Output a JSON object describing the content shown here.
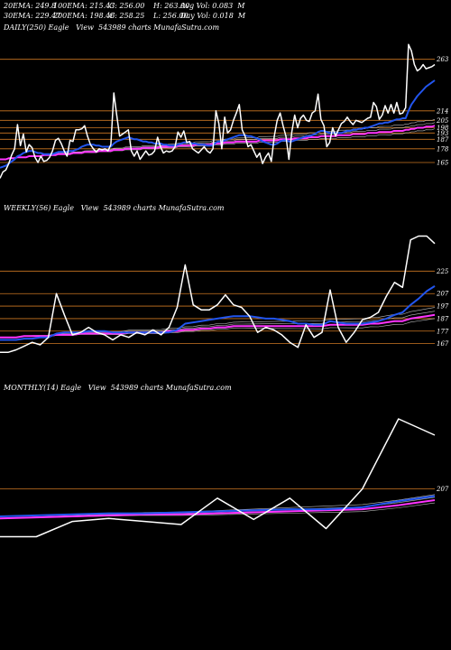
{
  "header": {
    "row1": [
      "20EMA: 249.8",
      "100EMA: 215.43",
      "C: 256.00",
      "H: 263.00",
      "Avg Vol: 0.083  M"
    ],
    "row2": [
      "30EMA: 229.47",
      "200EMA: 198.46",
      "C: 258.25",
      "L: 256.00",
      "Day Vol: 0.018  M"
    ]
  },
  "colors": {
    "price": "#ffffff",
    "ema_fast": "#2255ee",
    "ema_slow": "#ff33ff",
    "level": "#cc7722",
    "ema_thin": "#bbbbbb"
  },
  "chart_data": [
    {
      "type": "line",
      "title": "DAILY(250) Eagle   View  543989 charts MunafaSutra.com",
      "ylim": [
        135,
        285
      ],
      "levels": [
        263,
        214,
        205,
        198,
        193,
        187,
        178,
        165
      ],
      "series": [
        {
          "name": "price",
          "values": [
            150,
            156,
            158,
            164,
            172,
            178,
            201,
            181,
            192,
            175,
            182,
            179,
            170,
            165,
            171,
            166,
            167,
            170,
            176,
            186,
            188,
            183,
            176,
            171,
            186,
            185,
            196,
            196,
            197,
            200,
            190,
            182,
            178,
            175,
            178,
            177,
            178,
            176,
            182,
            231,
            210,
            190,
            192,
            194,
            196,
            176,
            171,
            176,
            168,
            172,
            176,
            172,
            173,
            176,
            189,
            180,
            174,
            176,
            175,
            176,
            180,
            194,
            189,
            195,
            184,
            185,
            178,
            176,
            174,
            177,
            180,
            176,
            174,
            178,
            214,
            202,
            178,
            208,
            193,
            196,
            205,
            212,
            220,
            196,
            190,
            180,
            182,
            176,
            170,
            174,
            164,
            170,
            174,
            166,
            190,
            205,
            212,
            200,
            190,
            168,
            194,
            210,
            198,
            207,
            210,
            205,
            204,
            212,
            214,
            230,
            206,
            200,
            180,
            184,
            198,
            190,
            196,
            202,
            204,
            208,
            204,
            201,
            205,
            204,
            203,
            205,
            207,
            208,
            222,
            218,
            206,
            210,
            219,
            212,
            220,
            212,
            222,
            211,
            212,
            217,
            277,
            271,
            258,
            252,
            254,
            258,
            254,
            255,
            256,
            258
          ]
        },
        {
          "name": "ema_fast",
          "values": [
            160,
            161,
            162,
            164,
            166,
            168,
            171,
            172,
            174,
            175,
            176,
            176,
            175,
            174,
            174,
            173,
            173,
            173,
            173,
            174,
            175,
            175,
            175,
            175,
            176,
            176,
            177,
            178,
            180,
            181,
            182,
            182,
            182,
            181,
            181,
            180,
            180,
            180,
            180,
            183,
            185,
            186,
            187,
            188,
            189,
            188,
            187,
            187,
            186,
            185,
            185,
            184,
            184,
            183,
            183,
            183,
            182,
            182,
            181,
            181,
            181,
            182,
            183,
            184,
            184,
            184,
            183,
            183,
            182,
            182,
            182,
            181,
            181,
            181,
            184,
            185,
            185,
            186,
            187,
            188,
            189,
            190,
            191,
            191,
            191,
            190,
            190,
            189,
            188,
            187,
            185,
            184,
            183,
            182,
            182,
            183,
            185,
            186,
            186,
            185,
            185,
            186,
            187,
            188,
            189,
            190,
            190,
            191,
            192,
            194,
            195,
            195,
            194,
            193,
            193,
            193,
            193,
            193,
            194,
            195,
            195,
            196,
            196,
            197,
            197,
            198,
            198,
            199,
            200,
            201,
            202,
            202,
            203,
            203,
            204,
            205,
            206,
            206,
            207,
            207,
            214,
            220,
            224,
            228,
            231,
            234,
            237,
            239,
            241,
            243
          ]
        },
        {
          "name": "ema_slow",
          "values": [
            168,
            168,
            168,
            169,
            169,
            169,
            170,
            170,
            170,
            170,
            171,
            171,
            171,
            171,
            171,
            172,
            172,
            172,
            172,
            172,
            173,
            173,
            173,
            173,
            173,
            174,
            174,
            174,
            174,
            175,
            175,
            175,
            175,
            175,
            176,
            176,
            176,
            176,
            176,
            177,
            177,
            177,
            177,
            178,
            178,
            178,
            178,
            178,
            178,
            179,
            179,
            179,
            179,
            179,
            179,
            180,
            180,
            180,
            180,
            180,
            180,
            181,
            181,
            181,
            181,
            181,
            181,
            182,
            182,
            182,
            182,
            182,
            182,
            183,
            183,
            183,
            183,
            184,
            184,
            184,
            184,
            185,
            185,
            185,
            185,
            185,
            185,
            185,
            185,
            186,
            186,
            186,
            186,
            186,
            186,
            186,
            187,
            187,
            187,
            187,
            187,
            188,
            188,
            188,
            188,
            188,
            189,
            189,
            189,
            189,
            190,
            190,
            190,
            190,
            190,
            190,
            191,
            191,
            191,
            191,
            191,
            192,
            192,
            192,
            192,
            192,
            193,
            193,
            193,
            193,
            194,
            194,
            194,
            194,
            194,
            195,
            195,
            195,
            195,
            196,
            196,
            197,
            197,
            198,
            198,
            198,
            199,
            199,
            199,
            200
          ]
        }
      ]
    },
    {
      "type": "line",
      "title": "WEEKLY(56) Eagle   View  543989 charts MunafaSutra.com",
      "ylim": [
        140,
        270
      ],
      "levels": [
        225,
        207,
        197,
        187,
        177,
        167
      ],
      "series": [
        {
          "name": "price",
          "values": [
            160,
            160,
            162,
            165,
            168,
            166,
            172,
            207,
            190,
            174,
            176,
            180,
            176,
            174,
            170,
            174,
            172,
            176,
            174,
            178,
            174,
            180,
            196,
            230,
            198,
            194,
            194,
            198,
            206,
            198,
            196,
            189,
            176,
            180,
            178,
            174,
            168,
            164,
            182,
            172,
            176,
            210,
            180,
            168,
            176,
            186,
            188,
            192,
            205,
            216,
            212,
            250,
            253,
            253,
            247
          ]
        },
        {
          "name": "ema_fast",
          "values": [
            170,
            170,
            170,
            171,
            171,
            172,
            172,
            175,
            176,
            176,
            176,
            177,
            177,
            177,
            176,
            176,
            176,
            176,
            176,
            176,
            176,
            176,
            178,
            183,
            184,
            185,
            186,
            187,
            188,
            189,
            189,
            189,
            188,
            187,
            187,
            186,
            185,
            183,
            183,
            182,
            182,
            185,
            184,
            183,
            183,
            183,
            184,
            185,
            187,
            190,
            192,
            198,
            203,
            209,
            213
          ]
        },
        {
          "name": "ema_slow",
          "values": [
            172,
            172,
            172,
            173,
            173,
            173,
            173,
            174,
            174,
            174,
            175,
            175,
            175,
            175,
            175,
            175,
            176,
            176,
            176,
            176,
            176,
            177,
            177,
            178,
            178,
            179,
            179,
            180,
            180,
            181,
            181,
            181,
            181,
            181,
            181,
            181,
            181,
            181,
            181,
            181,
            181,
            182,
            182,
            182,
            182,
            182,
            183,
            183,
            184,
            185,
            185,
            187,
            188,
            189,
            190
          ]
        }
      ]
    },
    {
      "type": "line",
      "title": "MONTHLY(14) Eagle   View  543989 charts MunafaSutra.com",
      "ylim": [
        140,
        300
      ],
      "levels": [
        207
      ],
      "series": [
        {
          "name": "price",
          "values": [
            160,
            160,
            175,
            178,
            175,
            172,
            198,
            177,
            198,
            168,
            207,
            276,
            260
          ]
        },
        {
          "name": "ema_fast",
          "values": [
            180,
            181,
            182,
            183,
            183,
            184,
            185,
            186,
            187,
            187,
            189,
            195,
            200
          ]
        },
        {
          "name": "ema_slow",
          "values": [
            178,
            179,
            180,
            181,
            182,
            182,
            183,
            184,
            185,
            186,
            187,
            191,
            196
          ]
        }
      ]
    }
  ]
}
